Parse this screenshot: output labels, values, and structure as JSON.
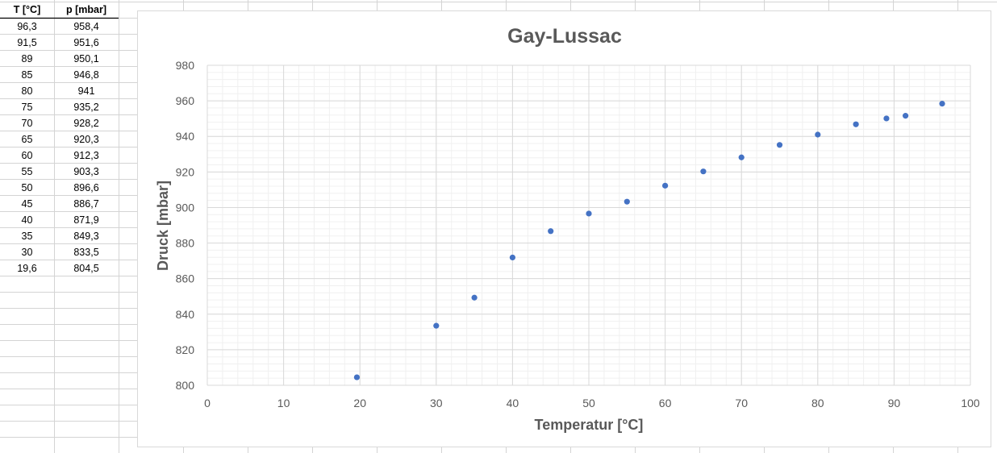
{
  "sheet": {
    "headers": {
      "col_a": "T [°C]",
      "col_b": "p [mbar]"
    },
    "rows": [
      [
        "96,3",
        "958,4"
      ],
      [
        "91,5",
        "951,6"
      ],
      [
        "89",
        "950,1"
      ],
      [
        "85",
        "946,8"
      ],
      [
        "80",
        "941"
      ],
      [
        "75",
        "935,2"
      ],
      [
        "70",
        "928,2"
      ],
      [
        "65",
        "920,3"
      ],
      [
        "60",
        "912,3"
      ],
      [
        "55",
        "903,3"
      ],
      [
        "50",
        "896,6"
      ],
      [
        "45",
        "886,7"
      ],
      [
        "40",
        "871,9"
      ],
      [
        "35",
        "849,3"
      ],
      [
        "30",
        "833,5"
      ],
      [
        "19,6",
        "804,5"
      ]
    ]
  },
  "chart_data": {
    "type": "scatter",
    "title": "Gay-Lussac",
    "xlabel": "Temperatur [°C]",
    "ylabel": "Druck [mbar]",
    "xlim": [
      0,
      100
    ],
    "ylim": [
      800,
      980
    ],
    "xticks": [
      "0",
      "10",
      "20",
      "30",
      "40",
      "50",
      "60",
      "70",
      "80",
      "90",
      "100"
    ],
    "yticks": [
      "800",
      "820",
      "840",
      "860",
      "880",
      "900",
      "920",
      "940",
      "960",
      "980"
    ],
    "grid": true,
    "legend": "none",
    "marker_color": "#4472c4",
    "series": [
      {
        "x": [
          96.3,
          91.5,
          89,
          85,
          80,
          75,
          70,
          65,
          60,
          55,
          50,
          45,
          40,
          35,
          30,
          19.6
        ],
        "y": [
          958.4,
          951.6,
          950.1,
          946.8,
          941,
          935.2,
          928.2,
          920.3,
          912.3,
          903.3,
          896.6,
          886.7,
          871.9,
          849.3,
          833.5,
          804.5
        ]
      }
    ]
  }
}
